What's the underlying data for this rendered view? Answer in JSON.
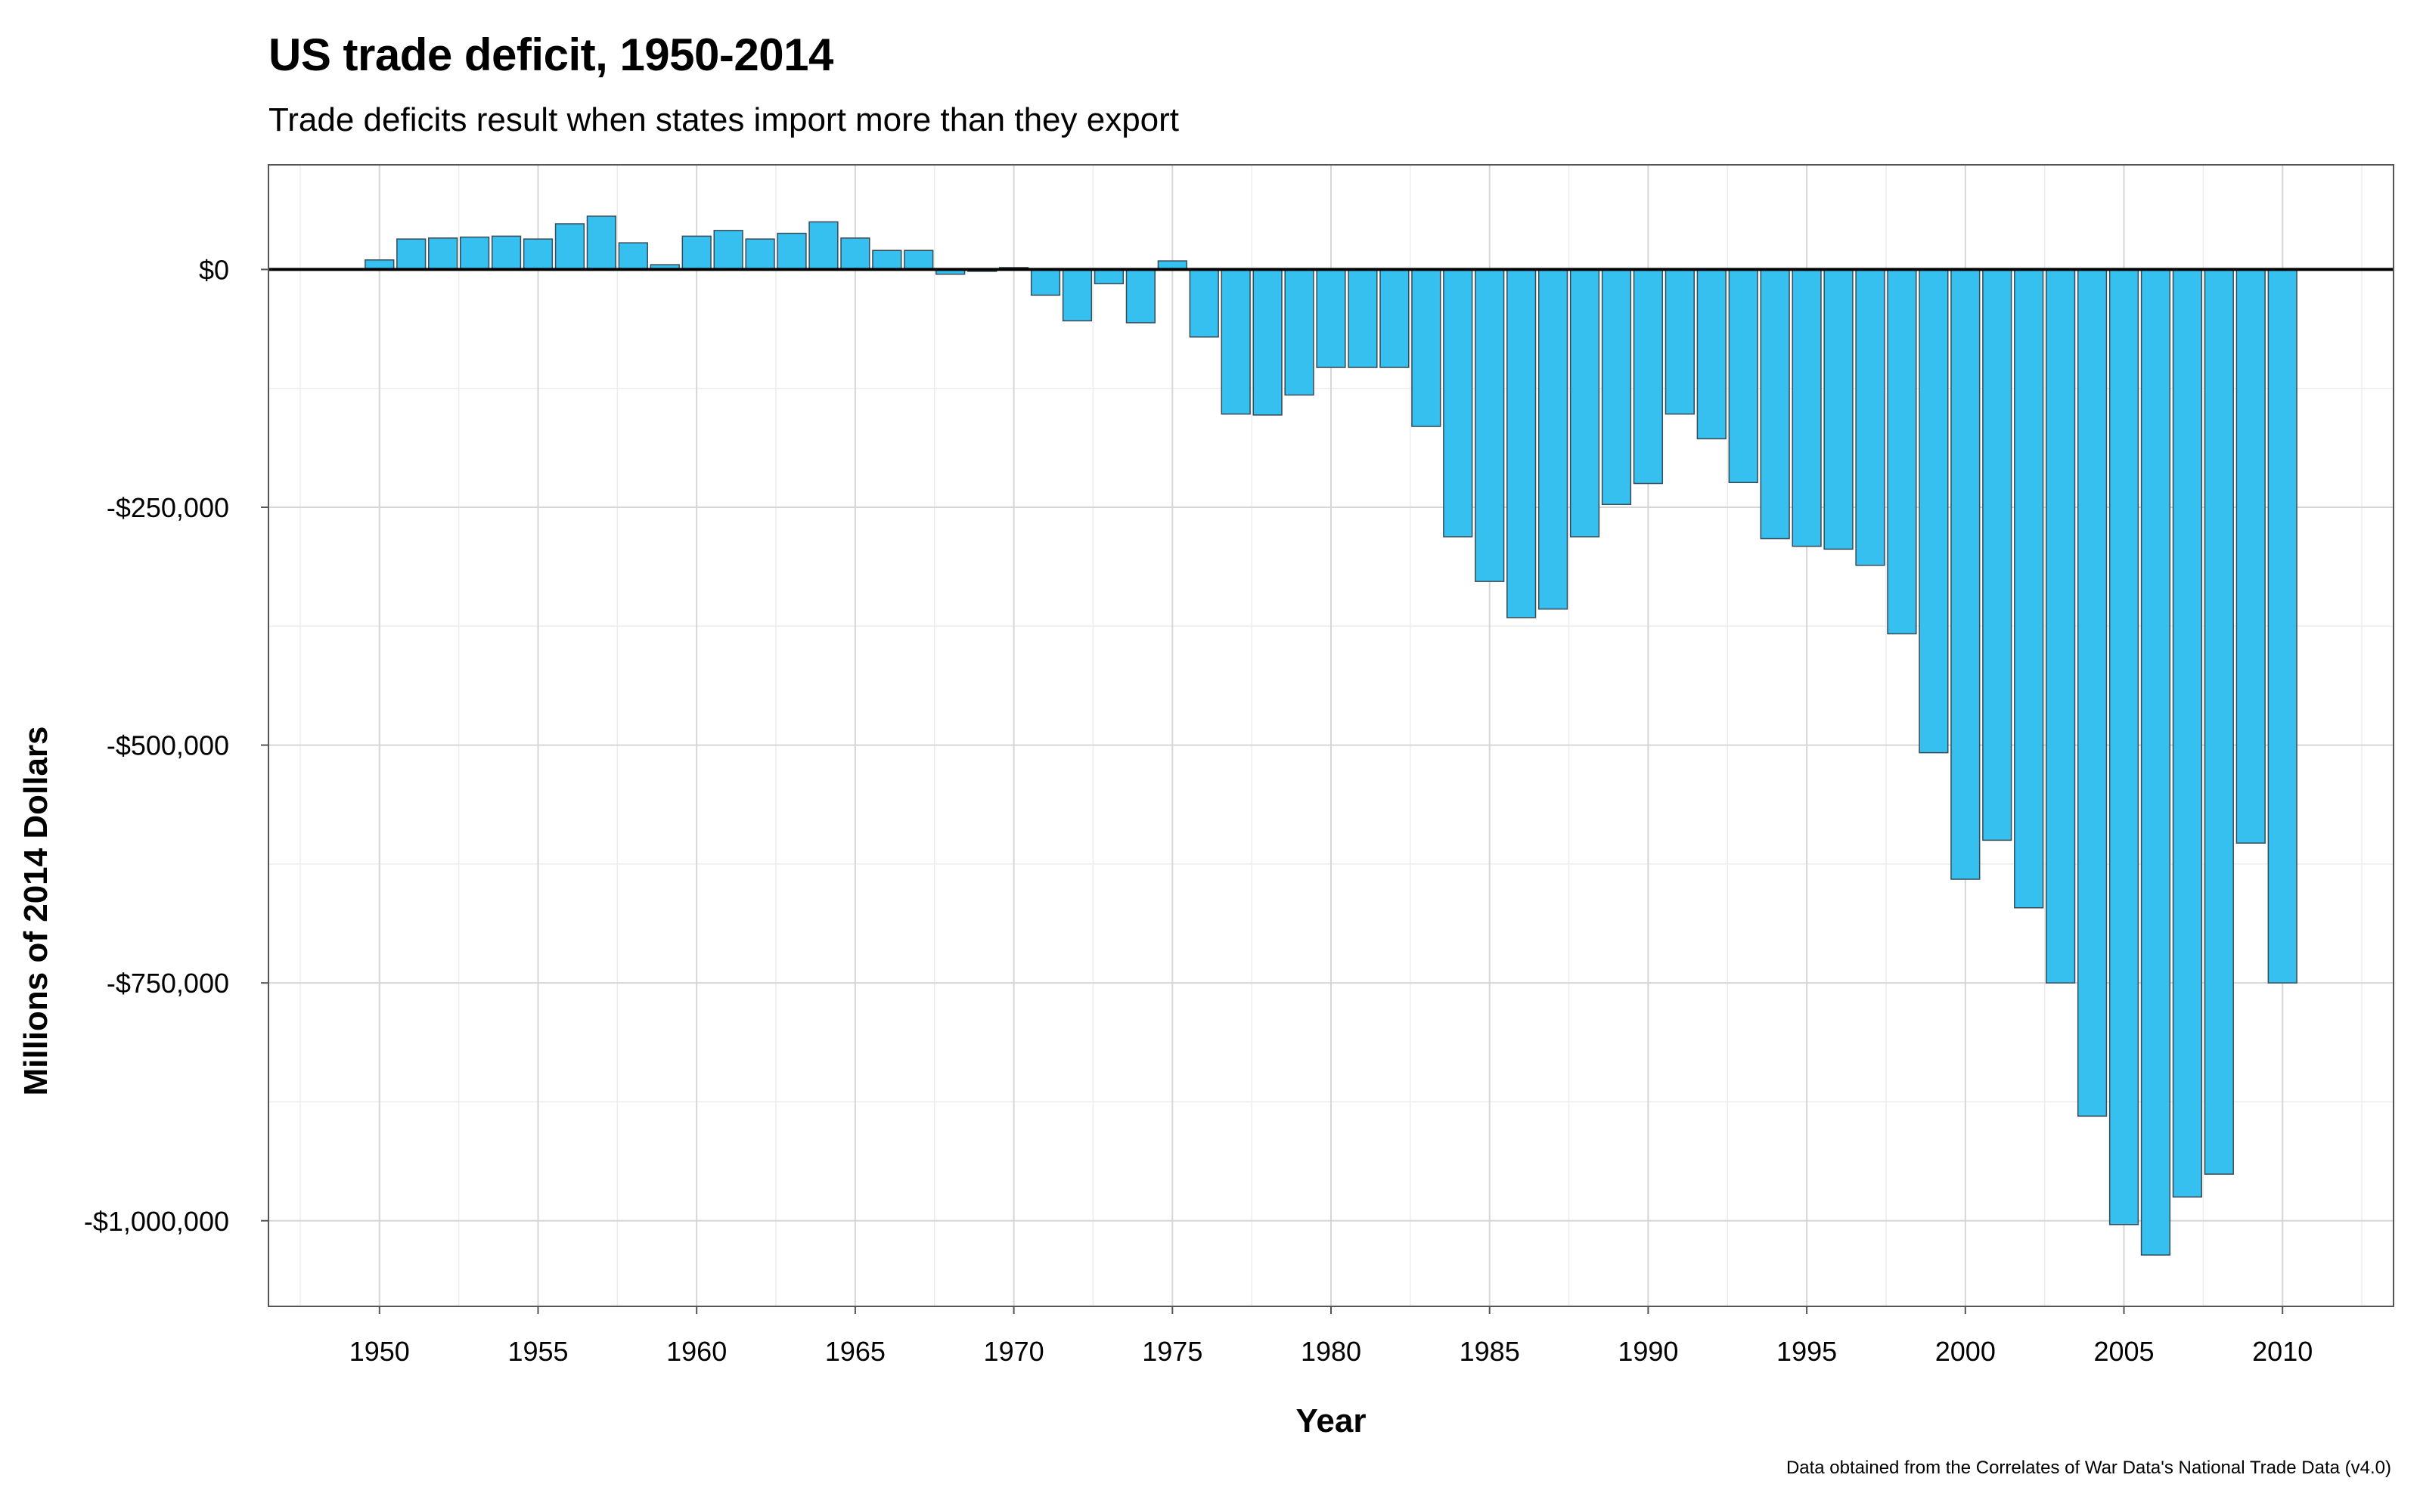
{
  "chart_data": {
    "type": "bar",
    "title": "US trade deficit, 1950-2014",
    "subtitle": "Trade deficits result when states import more than they export",
    "xlabel": "Year",
    "ylabel": "Millions of 2014 Dollars",
    "caption": "Data obtained from the Correlates of War Data's National Trade Data (v4.0)",
    "xlim": [
      1946.5,
      2013.5
    ],
    "ylim": [
      -1090000,
      110000
    ],
    "x_ticks": [
      1950,
      1955,
      1960,
      1965,
      1970,
      1975,
      1980,
      1985,
      1990,
      1995,
      2000,
      2005,
      2010
    ],
    "y_ticks": [
      0,
      -250000,
      -500000,
      -750000,
      -1000000
    ],
    "y_tick_labels": [
      "$0",
      "-$250,000",
      "-$500,000",
      "-$750,000",
      "-$1,000,000"
    ],
    "grid": true,
    "bar_color": "#35c0f0",
    "bar_edge_color": "#3a4a55",
    "zero_line_color": "#000000",
    "x": [
      1950,
      1951,
      1952,
      1953,
      1954,
      1955,
      1956,
      1957,
      1958,
      1959,
      1960,
      1961,
      1962,
      1963,
      1964,
      1965,
      1966,
      1967,
      1968,
      1969,
      1970,
      1971,
      1972,
      1973,
      1974,
      1975,
      1976,
      1977,
      1978,
      1979,
      1980,
      1981,
      1982,
      1983,
      1984,
      1985,
      1986,
      1987,
      1988,
      1989,
      1990,
      1991,
      1992,
      1993,
      1994,
      1995,
      1996,
      1997,
      1998,
      1999,
      2000,
      2001,
      2002,
      2003,
      2004,
      2005,
      2006,
      2007,
      2008,
      2009,
      2010
    ],
    "values": [
      10000,
      32000,
      33000,
      34000,
      35000,
      32000,
      48000,
      56000,
      28000,
      5000,
      35000,
      41000,
      32000,
      38000,
      50000,
      33000,
      20000,
      20000,
      -5000,
      -2000,
      2000,
      -27000,
      -54000,
      -15000,
      -56000,
      9000,
      -71000,
      -152000,
      -153000,
      -132000,
      -103000,
      -103000,
      -103000,
      -165000,
      -281000,
      -328000,
      -366000,
      -357000,
      -281000,
      -247000,
      -225000,
      -152000,
      -178000,
      -224000,
      -283000,
      -291000,
      -294000,
      -311000,
      -383000,
      -508000,
      -641000,
      -600000,
      -671000,
      -750000,
      -890000,
      -1004000,
      -1036000,
      -975000,
      -951000,
      -603000,
      -750000
    ]
  }
}
